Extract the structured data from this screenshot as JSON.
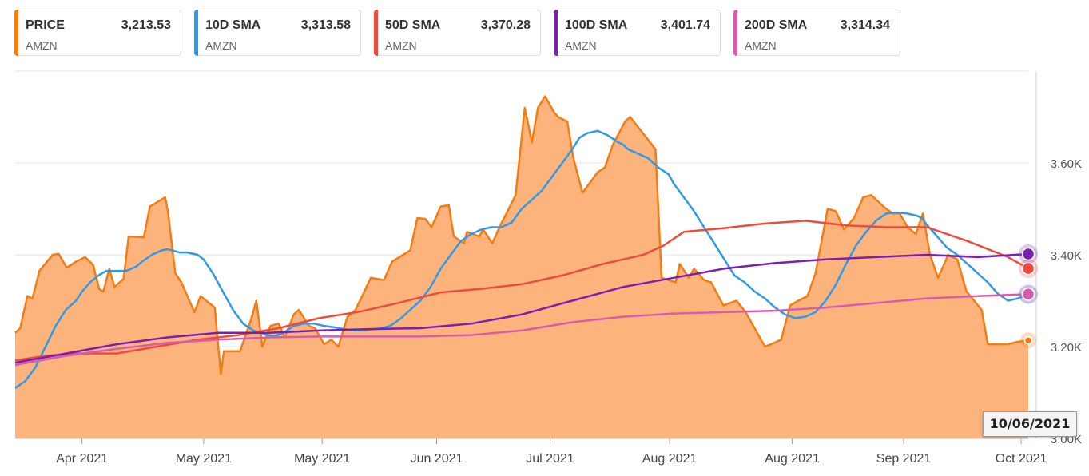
{
  "legend": [
    {
      "name": "PRICE",
      "value": "3,213.53",
      "ticker": "AMZN",
      "color": "#f57c12"
    },
    {
      "name": "10D SMA",
      "value": "3,313.58",
      "ticker": "AMZN",
      "color": "#2f9ae8"
    },
    {
      "name": "50D SMA",
      "value": "3,370.28",
      "ticker": "AMZN",
      "color": "#ef4a3c"
    },
    {
      "name": "100D SMA",
      "value": "3,401.74",
      "ticker": "AMZN",
      "color": "#7a1fb0"
    },
    {
      "name": "200D SMA",
      "value": "3,314.34",
      "ticker": "AMZN",
      "color": "#d65cae"
    }
  ],
  "crosshair_date": "10/06/2021",
  "chart_data": {
    "type": "area",
    "title": "",
    "xlabel": "",
    "ylabel": "",
    "ylim": [
      3000,
      3800
    ],
    "y_ticks": [
      3200,
      3400,
      3600
    ],
    "y_tick_labels": [
      "3.20K",
      "3.40K",
      "3.60K"
    ],
    "y_bottom_label": "3.00K",
    "x_range": [
      0,
      1000
    ],
    "x_ticks": [
      {
        "x": 66,
        "label": "Apr 2021"
      },
      {
        "x": 186,
        "label": "May 2021"
      },
      {
        "x": 303,
        "label": "May 2021"
      },
      {
        "x": 416,
        "label": "Jun 2021"
      },
      {
        "x": 528,
        "label": "Jul 2021"
      },
      {
        "x": 646,
        "label": "Aug 2021"
      },
      {
        "x": 767,
        "label": "Aug 2021"
      },
      {
        "x": 877,
        "label": "Sep 2021"
      },
      {
        "x": 993,
        "label": "Oct 2021"
      }
    ],
    "grid": true,
    "series": [
      {
        "name": "PRICE",
        "color": "#f57c12",
        "fill": "#fdb37c",
        "x": [
          0,
          5,
          12,
          17,
          24,
          37,
          43,
          51,
          60,
          69,
          77,
          83,
          87,
          93,
          98,
          107,
          112,
          127,
          133,
          148,
          151,
          158,
          164,
          177,
          183,
          197,
          200,
          203,
          206,
          214,
          222,
          233,
          238,
          244,
          252,
          260,
          266,
          275,
          280,
          290,
          296,
          305,
          312,
          319,
          328,
          336,
          351,
          364,
          372,
          383,
          390,
          397,
          405,
          411,
          420,
          428,
          433,
          443,
          446,
          458,
          462,
          471,
          478,
          494,
          503,
          510,
          516,
          523,
          532,
          536,
          545,
          551,
          560,
          575,
          582,
          590,
          602,
          607,
          632,
          638,
          652,
          656,
          665,
          670,
          680,
          687,
          699,
          712,
          721,
          740,
          746,
          756,
          765,
          773,
          782,
          790,
          802,
          810,
          818,
          828,
          837,
          845,
          857,
          866,
          873,
          881,
          889,
          896,
          903,
          911,
          921,
          930,
          939,
          954,
          960,
          969,
          980,
          988,
          1000
        ],
        "values": [
          3230,
          3240,
          3310,
          3305,
          3365,
          3400,
          3402,
          3372,
          3385,
          3395,
          3378,
          3325,
          3320,
          3370,
          3330,
          3348,
          3440,
          3438,
          3505,
          3525,
          3490,
          3360,
          3340,
          3275,
          3310,
          3285,
          3210,
          3140,
          3190,
          3190,
          3190,
          3260,
          3300,
          3200,
          3245,
          3250,
          3220,
          3270,
          3280,
          3245,
          3240,
          3205,
          3215,
          3200,
          3265,
          3280,
          3350,
          3345,
          3385,
          3400,
          3410,
          3480,
          3478,
          3460,
          3505,
          3508,
          3440,
          3425,
          3450,
          3440,
          3455,
          3425,
          3460,
          3530,
          3720,
          3645,
          3720,
          3745,
          3710,
          3700,
          3690,
          3610,
          3535,
          3580,
          3590,
          3640,
          3690,
          3700,
          3630,
          3350,
          3340,
          3380,
          3350,
          3370,
          3345,
          3340,
          3290,
          3300,
          3275,
          3200,
          3205,
          3215,
          3290,
          3300,
          3310,
          3360,
          3500,
          3495,
          3455,
          3480,
          3525,
          3530,
          3505,
          3490,
          3490,
          3460,
          3445,
          3490,
          3400,
          3350,
          3400,
          3390,
          3320,
          3280,
          3205,
          3205,
          3205,
          3210,
          3213.53
        ]
      },
      {
        "name": "10D SMA",
        "color": "#2f9ae8",
        "x": [
          0,
          10,
          20,
          30,
          40,
          50,
          60,
          66,
          74,
          82,
          90,
          100,
          110,
          120,
          125,
          135,
          145,
          150,
          155,
          162,
          170,
          180,
          186,
          195,
          205,
          215,
          225,
          235,
          245,
          255,
          265,
          275,
          285,
          295,
          305,
          315,
          325,
          335,
          345,
          355,
          362,
          370,
          380,
          390,
          400,
          410,
          420,
          430,
          440,
          450,
          460,
          470,
          480,
          490,
          500,
          510,
          520,
          530,
          540,
          550,
          557,
          565,
          575,
          585,
          595,
          600,
          605,
          615,
          625,
          635,
          645,
          650,
          660,
          670,
          680,
          690,
          700,
          710,
          720,
          730,
          740,
          750,
          760,
          770,
          780,
          790,
          800,
          810,
          820,
          830,
          840,
          850,
          860,
          870,
          880,
          890,
          895,
          900,
          910,
          920,
          930,
          940,
          950,
          960,
          970,
          980,
          990,
          1000
        ],
        "values": [
          3110,
          3125,
          3155,
          3200,
          3245,
          3280,
          3300,
          3320,
          3340,
          3355,
          3365,
          3365,
          3365,
          3375,
          3385,
          3400,
          3410,
          3412,
          3410,
          3405,
          3405,
          3400,
          3390,
          3360,
          3320,
          3280,
          3250,
          3235,
          3228,
          3222,
          3230,
          3245,
          3250,
          3250,
          3245,
          3242,
          3238,
          3235,
          3236,
          3238,
          3240,
          3245,
          3260,
          3280,
          3300,
          3330,
          3370,
          3400,
          3430,
          3445,
          3455,
          3460,
          3460,
          3470,
          3500,
          3520,
          3540,
          3570,
          3600,
          3630,
          3655,
          3665,
          3670,
          3660,
          3645,
          3640,
          3630,
          3620,
          3610,
          3590,
          3575,
          3555,
          3525,
          3495,
          3460,
          3425,
          3390,
          3355,
          3340,
          3320,
          3305,
          3285,
          3270,
          3262,
          3265,
          3275,
          3300,
          3335,
          3380,
          3420,
          3450,
          3475,
          3490,
          3492,
          3490,
          3485,
          3480,
          3465,
          3440,
          3415,
          3400,
          3380,
          3360,
          3340,
          3315,
          3300,
          3305,
          3313.58
        ]
      },
      {
        "name": "50D SMA",
        "color": "#ef4a3c",
        "x": [
          0,
          30,
          60,
          100,
          140,
          180,
          220,
          260,
          300,
          340,
          380,
          420,
          460,
          500,
          540,
          580,
          600,
          620,
          640,
          660,
          700,
          740,
          780,
          820,
          860,
          900,
          940,
          980,
          1000
        ],
        "values": [
          3170,
          3180,
          3185,
          3185,
          3200,
          3215,
          3225,
          3240,
          3262,
          3276,
          3296,
          3318,
          3326,
          3336,
          3355,
          3380,
          3390,
          3400,
          3420,
          3450,
          3458,
          3468,
          3474,
          3464,
          3460,
          3460,
          3430,
          3395,
          3370.28
        ]
      },
      {
        "name": "100D SMA",
        "color": "#7a1fb0",
        "x": [
          0,
          50,
          100,
          150,
          200,
          250,
          300,
          350,
          400,
          450,
          500,
          550,
          600,
          650,
          700,
          750,
          800,
          850,
          900,
          950,
          1000
        ],
        "values": [
          3165,
          3185,
          3205,
          3220,
          3230,
          3230,
          3235,
          3238,
          3240,
          3250,
          3270,
          3300,
          3330,
          3350,
          3370,
          3382,
          3390,
          3395,
          3400,
          3395,
          3401.74
        ]
      },
      {
        "name": "200D SMA",
        "color": "#d65cae",
        "x": [
          0,
          50,
          100,
          150,
          200,
          250,
          300,
          350,
          400,
          450,
          500,
          550,
          600,
          650,
          700,
          750,
          800,
          850,
          900,
          950,
          1000
        ],
        "values": [
          3160,
          3180,
          3195,
          3208,
          3215,
          3220,
          3222,
          3222,
          3222,
          3225,
          3235,
          3253,
          3265,
          3272,
          3275,
          3278,
          3285,
          3295,
          3305,
          3310,
          3314.34
        ]
      }
    ]
  }
}
